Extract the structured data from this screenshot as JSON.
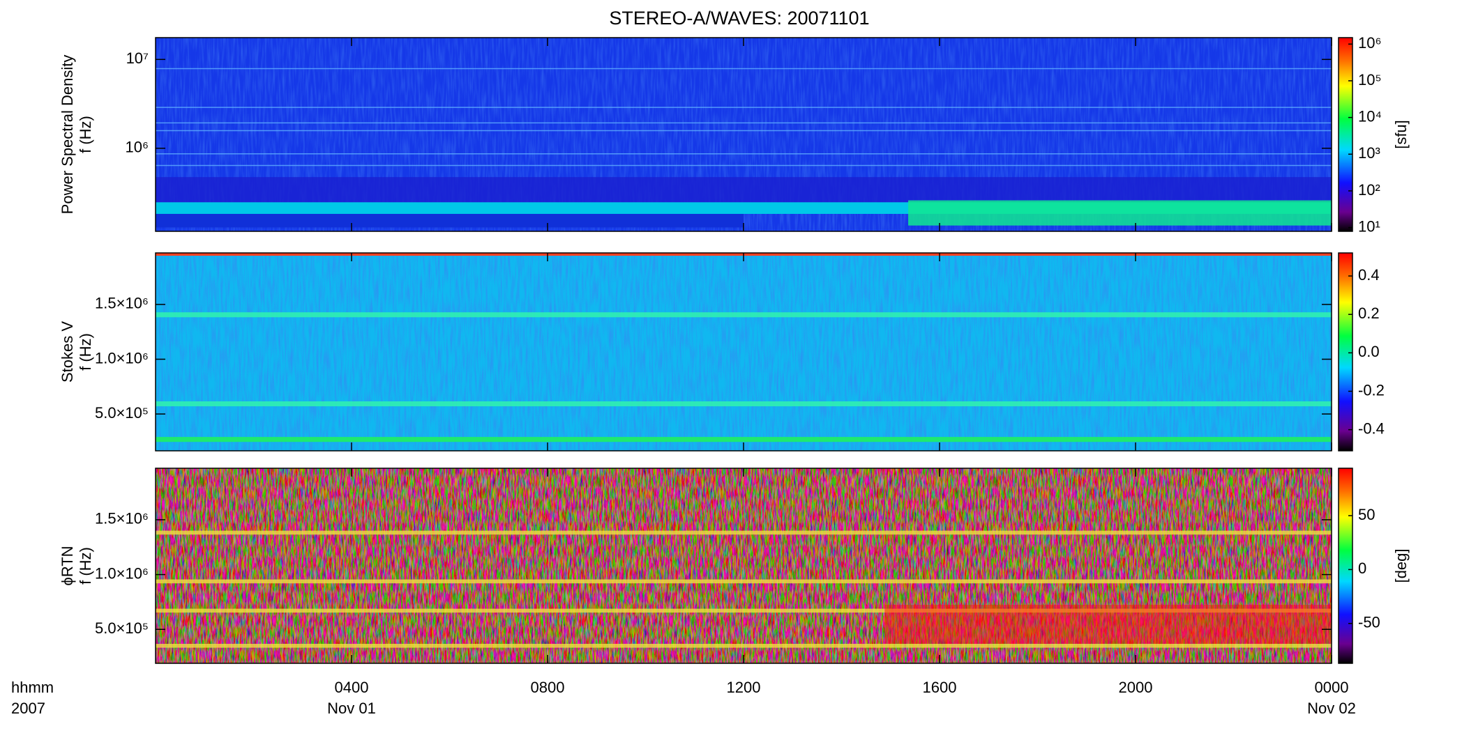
{
  "chart_data": [
    {
      "type": "spectrogram",
      "title": "STEREO-A/WAVES: 20071101",
      "ylabel": [
        "Power Spectral Density",
        "f (Hz)"
      ],
      "yscale": "log",
      "ylim": [
        116000,
        17600000
      ],
      "yticks": [
        {
          "value": 1000000,
          "label": "10⁶"
        },
        {
          "value": 10000000,
          "label": "10⁷"
        }
      ],
      "xlim": [
        0,
        24
      ],
      "xticks": [
        4,
        8,
        12,
        16,
        20,
        24
      ],
      "colorbar": {
        "scale": "log",
        "lim": [
          7.9,
          1500000
        ],
        "label": "[sfu]",
        "colormap": "rainbow",
        "ticks": [
          {
            "value": 10,
            "label": "10¹"
          },
          {
            "value": 100,
            "label": "10²"
          },
          {
            "value": 1000,
            "label": "10³"
          },
          {
            "value": 10000,
            "label": "10⁴"
          },
          {
            "value": 100000,
            "label": "10⁵"
          },
          {
            "value": 1000000,
            "label": "10⁶"
          }
        ]
      }
    },
    {
      "type": "spectrogram",
      "ylabel": [
        "Stokes V",
        "f (Hz)"
      ],
      "yscale": "linear",
      "ylim": [
        164000,
        1970000
      ],
      "yticks": [
        {
          "value": 500000,
          "label": "5.0×10⁵"
        },
        {
          "value": 1000000,
          "label": "1.0×10⁶"
        },
        {
          "value": 1500000,
          "label": "1.5×10⁶"
        }
      ],
      "xlim": [
        0,
        24
      ],
      "xticks": [
        4,
        8,
        12,
        16,
        20,
        24
      ],
      "colorbar": {
        "scale": "linear",
        "lim": [
          -0.51,
          0.52
        ],
        "colormap": "rainbow",
        "ticks": [
          {
            "value": -0.4,
            "label": "-0.4"
          },
          {
            "value": -0.2,
            "label": "-0.2"
          },
          {
            "value": 0,
            "label": "0.0"
          },
          {
            "value": 0.2,
            "label": "0.2"
          },
          {
            "value": 0.4,
            "label": "0.4"
          }
        ]
      }
    },
    {
      "type": "spectrogram",
      "ylabel": [
        "ϕRTN",
        "f (Hz)"
      ],
      "yscale": "linear",
      "ylim": [
        190000,
        1970000
      ],
      "yticks": [
        {
          "value": 500000,
          "label": "5.0×10⁵"
        },
        {
          "value": 1000000,
          "label": "1.0×10⁶"
        },
        {
          "value": 1500000,
          "label": "1.5×10⁶"
        }
      ],
      "xlim": [
        0,
        24
      ],
      "xticks": [
        {
          "value": 4,
          "label": "0400"
        },
        {
          "value": 8,
          "label": "0800"
        },
        {
          "value": 12,
          "label": "1200"
        },
        {
          "value": 16,
          "label": "1600"
        },
        {
          "value": 20,
          "label": "2000"
        },
        {
          "value": 24,
          "label": "0000"
        }
      ],
      "x_dates": [
        {
          "value": 4,
          "label": "Nov 01"
        },
        {
          "value": 24,
          "label": "Nov 02"
        }
      ],
      "x_label_lines": [
        "hhmm",
        "2007"
      ],
      "colorbar": {
        "scale": "linear",
        "lim": [
          -87,
          94
        ],
        "label": "[deg]",
        "colormap": "rainbow",
        "ticks": [
          -50,
          0,
          50
        ]
      }
    }
  ]
}
